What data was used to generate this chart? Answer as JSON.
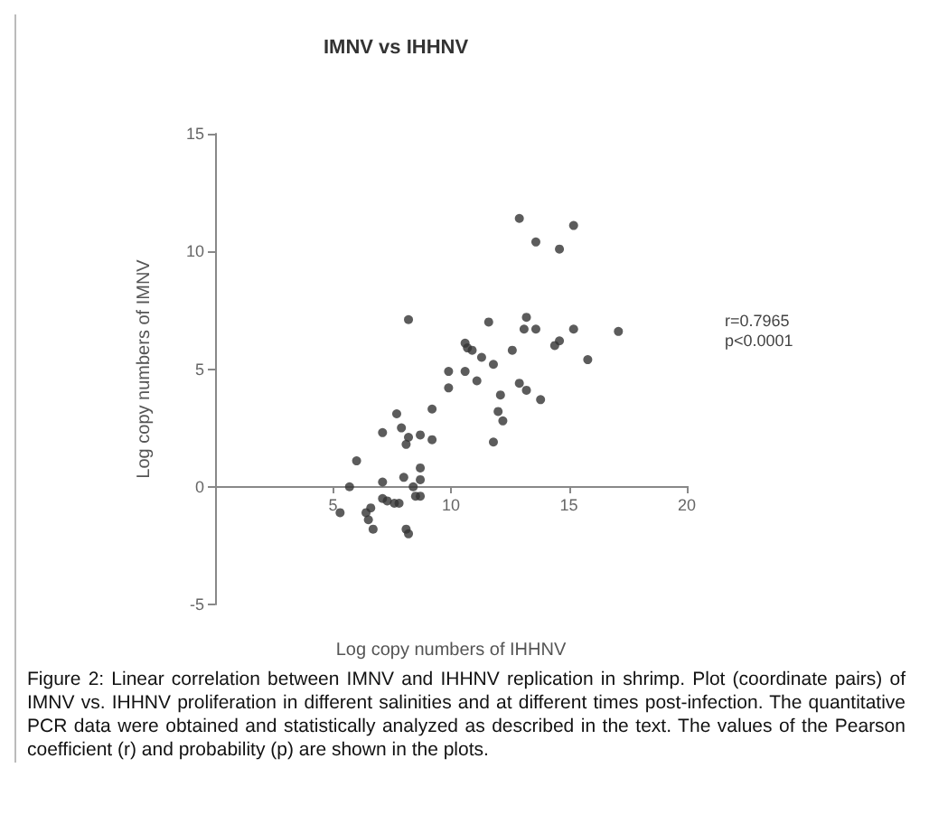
{
  "chart_data": {
    "type": "scatter",
    "title": "IMNV vs IHHNV",
    "xlabel": "Log copy numbers of IHHNV",
    "ylabel": "Log copy numbers of IMNV",
    "annotations": [
      "r=0.7965\np<0.0001",
      "Figure 2: Linear correlation between IMNV and IHHNV replication in shrimp. Plot (coordinate pairs) of IMNV vs. IHHNV proliferation in different salinities and at different times post-infection. The quantitative PCR data were obtained and statistically analyzed as described in the text. The values of the Pearson coefficient (r) and probability (p) are shown in the plots."
    ],
    "x": [
      12.9,
      15.2,
      13.6,
      14.6,
      8.2,
      11.6,
      13.2,
      13.1,
      13.6,
      15.2,
      17.1,
      10.6,
      10.7,
      10.9,
      11.3,
      12.6,
      11.8,
      14.4,
      14.6,
      15.8,
      9.9,
      10.6,
      11.1,
      9.9,
      12.9,
      13.2,
      12.1,
      13.8,
      9.2,
      12.0,
      12.2,
      11.8,
      7.7,
      7.9,
      7.1,
      8.7,
      9.2,
      8.2,
      8.1,
      6.0,
      8.7,
      8.7,
      8.0,
      7.1,
      5.7,
      8.4,
      7.1,
      7.6,
      7.8,
      8.5,
      8.7,
      6.6,
      6.4,
      5.3,
      6.5,
      6.7,
      8.1,
      8.2,
      7.3
    ],
    "values": [
      11.4,
      11.1,
      10.4,
      10.1,
      7.1,
      7.0,
      7.2,
      6.7,
      6.7,
      6.7,
      6.6,
      6.1,
      5.9,
      5.8,
      5.5,
      5.8,
      5.2,
      6.0,
      6.2,
      5.4,
      4.9,
      4.9,
      4.5,
      4.2,
      4.4,
      4.1,
      3.9,
      3.7,
      3.3,
      3.2,
      2.8,
      1.9,
      3.1,
      2.5,
      2.3,
      2.2,
      2.0,
      2.1,
      1.8,
      1.1,
      0.8,
      0.3,
      0.4,
      0.2,
      0.0,
      0.0,
      -0.5,
      -0.7,
      -0.7,
      -0.4,
      -0.4,
      -0.9,
      -1.1,
      -1.1,
      -1.4,
      -1.8,
      -1.8,
      -2.0,
      -0.6
    ],
    "color": "#333333",
    "marker": "circle",
    "xlim": [
      0,
      20
    ],
    "xticks": [
      5,
      10,
      15,
      20
    ],
    "ylim": [
      -5,
      15
    ],
    "yticks": [
      -5,
      0,
      5,
      10,
      15
    ],
    "grid": false
  }
}
